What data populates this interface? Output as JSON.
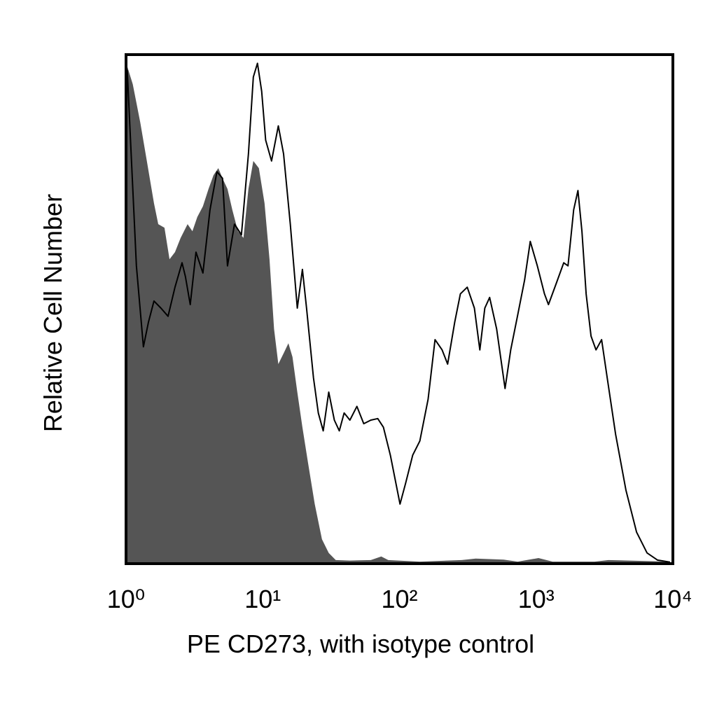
{
  "chart_data": {
    "type": "line",
    "xlabel": "PE CD273, with isotype control",
    "ylabel": "Relative Cell Number",
    "xscale": "log",
    "xlim": [
      1,
      10000
    ],
    "xticks": [
      {
        "value": 1,
        "label": "10⁰"
      },
      {
        "value": 10,
        "label": "10¹"
      },
      {
        "value": 100,
        "label": "10²"
      },
      {
        "value": 1000,
        "label": "10³"
      },
      {
        "value": 10000,
        "label": "10⁴"
      }
    ],
    "ylim": [
      0,
      100
    ],
    "grid": false,
    "series": [
      {
        "color": "#555555",
        "filled": true,
        "x": [
          1.02,
          1.12,
          1.27,
          1.42,
          1.6,
          1.72,
          1.91,
          2.08,
          2.28,
          2.51,
          2.82,
          3.06,
          3.32,
          3.65,
          4.01,
          4.36,
          4.73,
          5.08,
          5.52,
          5.99,
          6.58,
          7.23,
          7.86,
          8.53,
          9.37,
          10.3,
          11.2,
          12.1,
          13.0,
          14.2,
          15.4,
          16.5,
          17.9,
          19.5,
          21.4,
          24.0,
          27.1,
          30.4,
          34.2,
          43.4,
          61.7,
          73.6,
          82.8,
          141,
          285,
          361,
          578,
          732,
          1040,
          1320,
          2670,
          3380,
          9540
        ],
        "values": [
          97.7,
          94.2,
          86.7,
          79.1,
          70.8,
          66.7,
          66.0,
          59.8,
          61.2,
          64.0,
          66.7,
          65.3,
          68.1,
          70.2,
          73.6,
          76.3,
          77.7,
          75.7,
          73.6,
          69.5,
          65.3,
          64.0,
          73.6,
          79.1,
          77.7,
          70.8,
          59.8,
          46.1,
          39.2,
          41.3,
          43.3,
          40.6,
          33.7,
          26.8,
          19.9,
          11.7,
          4.8,
          2.1,
          0.7,
          0.6,
          0.7,
          1.4,
          0.7,
          0.4,
          0.7,
          1.0,
          0.8,
          0.4,
          1.1,
          0.4,
          0.4,
          0.7,
          0.4
        ]
      },
      {
        "color": "#000000",
        "filled": false,
        "x": [
          1.02,
          1.19,
          1.34,
          1.46,
          1.6,
          1.8,
          2.03,
          2.28,
          2.57,
          2.72,
          2.95,
          3.25,
          3.65,
          4.11,
          4.62,
          5.08,
          5.52,
          6.21,
          6.98,
          7.86,
          8.53,
          9.15,
          9.82,
          10.5,
          11.6,
          13.0,
          14.2,
          15.9,
          17.9,
          19.5,
          20.9,
          23.5,
          25.5,
          27.7,
          30.4,
          33.4,
          36.3,
          39.4,
          43.4,
          48.8,
          54.8,
          61.7,
          69.4,
          76.3,
          85.8,
          101,
          111,
          125,
          141,
          162,
          182,
          205,
          225,
          254,
          279,
          313,
          353,
          387,
          421,
          457,
          514,
          592,
          651,
          732,
          823,
          905,
          1020,
          1150,
          1230,
          1400,
          1590,
          1710,
          1880,
          2020,
          2160,
          2320,
          2520,
          2740,
          3010,
          3310,
          3810,
          4540,
          5420,
          6470,
          7720,
          9540
        ],
        "values": [
          97.0,
          58.5,
          42.6,
          47.5,
          51.6,
          50.2,
          48.6,
          54.3,
          59.1,
          56.4,
          50.9,
          61.2,
          57.1,
          69.5,
          77.0,
          75.7,
          58.5,
          66.7,
          64.6,
          80.5,
          95.6,
          98.3,
          92.8,
          83.2,
          79.1,
          86.0,
          80.5,
          66.7,
          50.2,
          57.8,
          50.2,
          36.5,
          29.6,
          26.1,
          33.7,
          28.2,
          26.1,
          29.6,
          28.2,
          30.9,
          27.5,
          28.2,
          28.5,
          26.8,
          21.3,
          11.7,
          15.8,
          21.3,
          24.1,
          32.3,
          44.0,
          42.0,
          39.2,
          47.5,
          53.0,
          54.3,
          50.2,
          42.0,
          50.2,
          52.3,
          46.1,
          34.4,
          42.0,
          48.8,
          55.7,
          63.3,
          58.5,
          53.0,
          50.9,
          55.0,
          59.1,
          58.5,
          69.5,
          73.3,
          65.3,
          53.0,
          44.7,
          42.0,
          44.0,
          36.5,
          25.4,
          14.4,
          6.2,
          2.1,
          0.7,
          0.3
        ]
      }
    ]
  }
}
